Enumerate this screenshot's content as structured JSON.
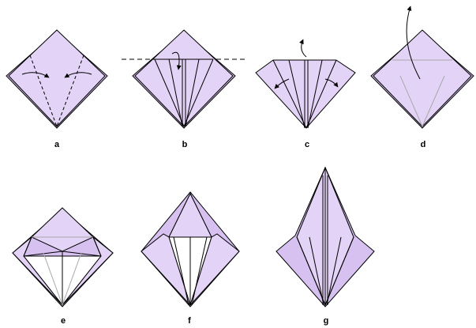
{
  "colors": {
    "paper": "#e3d3f6",
    "paper_dark": "#d6c1f0",
    "white_side": "#ffffff",
    "line": "#000000",
    "crease": "#a8a8a8"
  },
  "steps": [
    {
      "label": "a",
      "icon": "kite-base-fold-icon"
    },
    {
      "label": "b",
      "icon": "fold-top-down-icon"
    },
    {
      "label": "c",
      "icon": "unfold-flaps-icon"
    },
    {
      "label": "d",
      "icon": "petal-fold-lift-icon"
    },
    {
      "label": "e",
      "icon": "petal-fold-flatten-icon"
    },
    {
      "label": "f",
      "icon": "repeat-other-side-icon"
    },
    {
      "label": "g",
      "icon": "bird-base-result-icon"
    }
  ]
}
